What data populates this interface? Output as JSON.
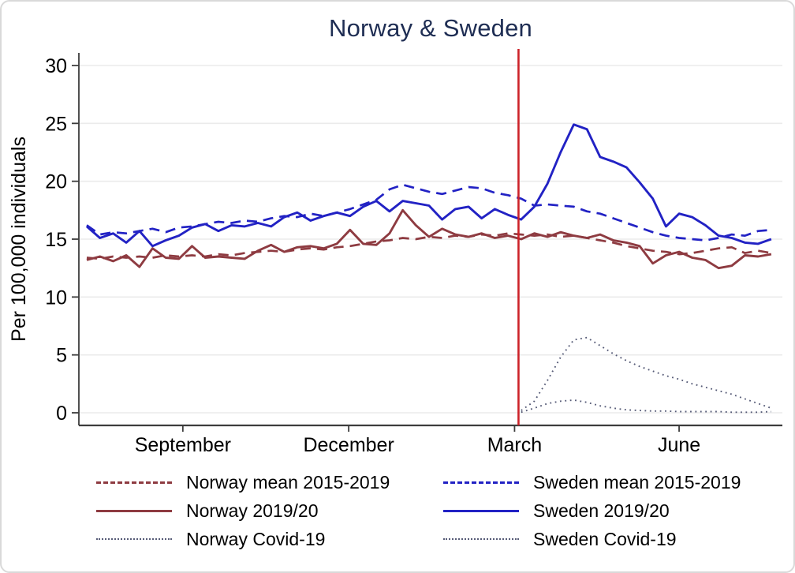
{
  "figure": {
    "title": "Norway & Sweden"
  },
  "chart_data": {
    "type": "line",
    "title": "Norway & Sweden",
    "xlabel": "",
    "ylabel": "Per 100,000 individuals",
    "x_axis": {
      "tick_labels": [
        "September",
        "December",
        "March",
        "June"
      ],
      "tick_positions_week_index": [
        7.3,
        19.9,
        32.5,
        45.0
      ],
      "range_week_index": [
        -0.6,
        52.8
      ]
    },
    "y_axis": {
      "ticks": [
        0,
        5,
        10,
        15,
        20,
        25,
        30
      ],
      "range": [
        0,
        30.8
      ]
    },
    "grid": "horizontal-light",
    "grid_color": "#ebebeb",
    "event_line": {
      "week_index": 32.8,
      "color": "#cc2229"
    },
    "series": [
      {
        "name": "Norway mean 2015-2019",
        "color": "#8e3b41",
        "style": "dashed",
        "values": [
          13.4,
          13.3,
          13.5,
          13.4,
          13.5,
          13.4,
          13.6,
          13.5,
          13.6,
          13.5,
          13.7,
          13.6,
          13.8,
          13.9,
          14.0,
          13.9,
          14.1,
          14.2,
          14.1,
          14.3,
          14.4,
          14.6,
          14.8,
          14.9,
          15.1,
          15.0,
          15.2,
          15.1,
          15.3,
          15.2,
          15.4,
          15.3,
          15.5,
          15.4,
          15.3,
          15.4,
          15.2,
          15.3,
          15.1,
          14.9,
          14.7,
          14.4,
          14.2,
          14.0,
          13.9,
          13.7,
          13.8,
          14.0,
          14.2,
          14.3,
          13.8,
          14.0,
          13.8
        ]
      },
      {
        "name": "Norway 2019/20",
        "color": "#8e3b41",
        "style": "solid",
        "values": [
          13.2,
          13.5,
          13.1,
          13.6,
          12.6,
          14.2,
          13.4,
          13.3,
          14.4,
          13.4,
          13.5,
          13.4,
          13.3,
          14.0,
          14.5,
          13.9,
          14.3,
          14.4,
          14.2,
          14.6,
          15.8,
          14.6,
          14.5,
          15.5,
          17.5,
          16.2,
          15.2,
          15.9,
          15.4,
          15.2,
          15.5,
          15.1,
          15.3,
          15.0,
          15.5,
          15.2,
          15.6,
          15.3,
          15.1,
          15.4,
          14.9,
          14.7,
          14.4,
          12.9,
          13.6,
          13.9,
          13.4,
          13.2,
          12.5,
          12.7,
          13.6,
          13.5,
          13.7
        ]
      },
      {
        "name": "Norway Covid-19",
        "color": "#565b77",
        "style": "dotted",
        "values": [
          null,
          null,
          null,
          null,
          null,
          null,
          null,
          null,
          null,
          null,
          null,
          null,
          null,
          null,
          null,
          null,
          null,
          null,
          null,
          null,
          null,
          null,
          null,
          null,
          null,
          null,
          null,
          null,
          null,
          null,
          null,
          null,
          null,
          0.05,
          0.4,
          0.8,
          1.0,
          1.1,
          0.9,
          0.6,
          0.4,
          0.25,
          0.2,
          0.15,
          0.15,
          0.1,
          0.1,
          0.1,
          0.1,
          0.05,
          0.05,
          0.05,
          0.1
        ]
      },
      {
        "name": "Sweden mean 2015-2019",
        "color": "#2222c4",
        "style": "dashed",
        "values": [
          16.2,
          15.4,
          15.6,
          15.5,
          15.7,
          15.9,
          15.6,
          16.0,
          16.1,
          16.3,
          16.5,
          16.4,
          16.6,
          16.5,
          16.8,
          17.0,
          16.9,
          17.2,
          17.0,
          17.3,
          17.6,
          18.0,
          18.4,
          19.3,
          19.7,
          19.4,
          19.1,
          18.9,
          19.2,
          19.5,
          19.4,
          19.0,
          18.8,
          18.5,
          17.9,
          18.0,
          17.9,
          17.8,
          17.4,
          17.2,
          16.8,
          16.4,
          16.0,
          15.6,
          15.3,
          15.1,
          15.0,
          14.9,
          15.1,
          15.4,
          15.3,
          15.7,
          15.8
        ]
      },
      {
        "name": "Sweden 2019/20",
        "color": "#2222c4",
        "style": "solid",
        "values": [
          16.1,
          15.1,
          15.5,
          14.7,
          15.7,
          14.4,
          14.9,
          15.3,
          16.0,
          16.3,
          15.7,
          16.2,
          16.1,
          16.4,
          16.1,
          16.9,
          17.3,
          16.6,
          17.0,
          17.3,
          17.0,
          17.8,
          18.3,
          17.4,
          18.3,
          18.1,
          17.9,
          16.7,
          17.6,
          17.8,
          16.8,
          17.6,
          17.1,
          16.7,
          17.8,
          19.8,
          22.5,
          24.9,
          24.5,
          22.1,
          21.7,
          21.2,
          19.9,
          18.5,
          16.1,
          17.2,
          16.9,
          16.2,
          15.3,
          15.1,
          14.7,
          14.6,
          15.0
        ]
      },
      {
        "name": "Sweden Covid-19",
        "color": "#565b77",
        "style": "dotted",
        "values": [
          null,
          null,
          null,
          null,
          null,
          null,
          null,
          null,
          null,
          null,
          null,
          null,
          null,
          null,
          null,
          null,
          null,
          null,
          null,
          null,
          null,
          null,
          null,
          null,
          null,
          null,
          null,
          null,
          null,
          null,
          null,
          null,
          null,
          0.2,
          1.0,
          2.8,
          4.8,
          6.3,
          6.5,
          5.8,
          5.1,
          4.5,
          4.0,
          3.6,
          3.2,
          2.9,
          2.5,
          2.2,
          1.9,
          1.6,
          1.2,
          0.8,
          0.4
        ]
      }
    ]
  },
  "legend": {
    "items": [
      {
        "label": "Norway mean 2015-2019"
      },
      {
        "label": "Sweden mean 2015-2019"
      },
      {
        "label": "Norway 2019/20"
      },
      {
        "label": "Sweden 2019/20"
      },
      {
        "label": "Norway Covid-19"
      },
      {
        "label": "Sweden Covid-19"
      }
    ]
  }
}
